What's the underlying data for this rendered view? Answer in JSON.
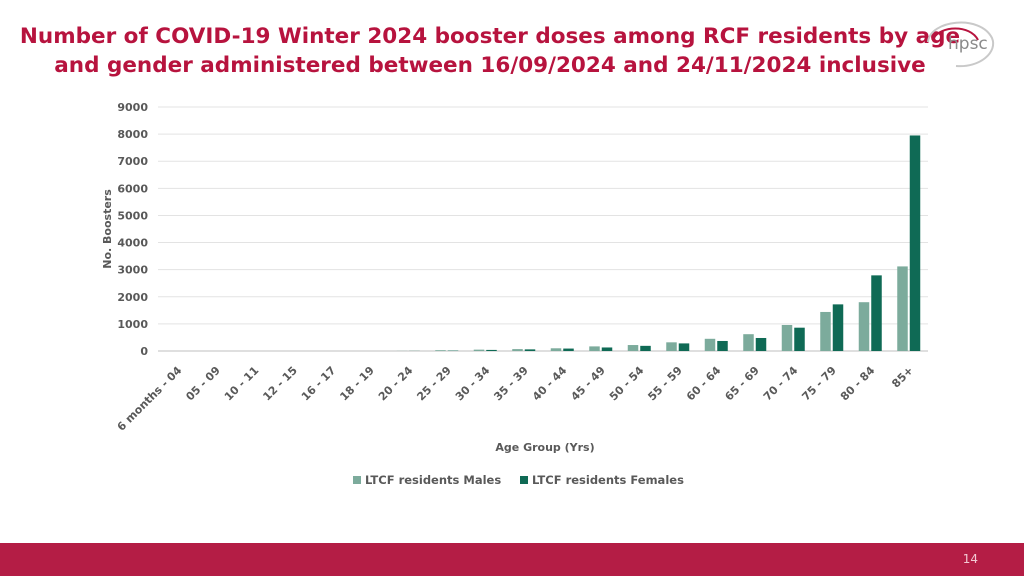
{
  "slide": {
    "title_line1": "Number of COVID-19 Winter 2024 booster doses among RCF residents by age",
    "title_line2": "and gender administered between 16/09/2024 and 24/11/2024 inclusive",
    "logo_text": "hpsc",
    "page_number": "14",
    "colors": {
      "title": "#b7133e",
      "footer": "#b41d45",
      "males": "#7cab9c",
      "females": "#0f6a55"
    }
  },
  "chart_data": {
    "type": "bar",
    "title": "",
    "xlabel": "Age Group (Yrs)",
    "ylabel": "No. Boosters",
    "ylim": [
      0,
      9000
    ],
    "yticks": [
      0,
      1000,
      2000,
      3000,
      4000,
      5000,
      6000,
      7000,
      8000,
      9000
    ],
    "grid": true,
    "legend_position": "bottom",
    "categories": [
      "6 months - 04",
      "05 - 09",
      "10 - 11",
      "12 - 15",
      "16 - 17",
      "18 - 19",
      "20 - 24",
      "25 - 29",
      "30 - 34",
      "35 - 39",
      "40 - 44",
      "45 - 49",
      "50 - 54",
      "55 - 59",
      "60 - 64",
      "65 - 69",
      "70 - 74",
      "75 - 79",
      "80 - 84",
      "85+"
    ],
    "series": [
      {
        "name": "LTCF residents Males",
        "color": "#7cab9c",
        "values": [
          0,
          0,
          0,
          0,
          0,
          0,
          5,
          30,
          50,
          70,
          100,
          170,
          220,
          320,
          450,
          620,
          960,
          1440,
          1800,
          3120
        ]
      },
      {
        "name": "LTCF residents Females",
        "color": "#0f6a55",
        "values": [
          0,
          0,
          0,
          0,
          0,
          0,
          5,
          15,
          40,
          60,
          90,
          130,
          190,
          280,
          370,
          480,
          860,
          1720,
          2790,
          7950
        ]
      }
    ]
  }
}
